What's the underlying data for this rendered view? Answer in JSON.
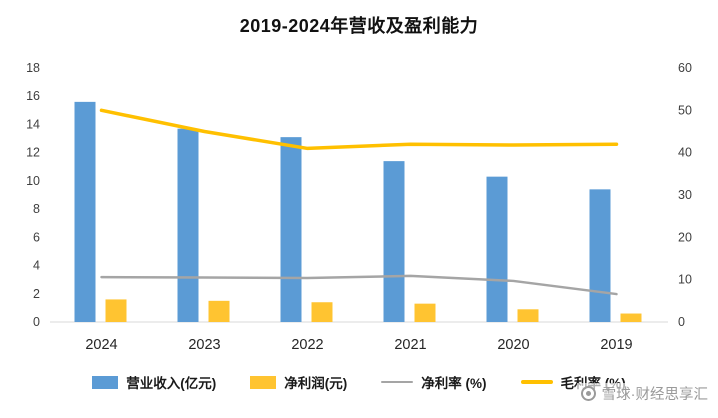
{
  "watermark": {
    "text": "雪球·财经思享汇"
  },
  "chart_data": {
    "type": "combo-bar-line",
    "title": "2019-2024年营收及盈利能力",
    "categories": [
      "2024",
      "2023",
      "2022",
      "2021",
      "2020",
      "2019"
    ],
    "left_axis": {
      "min": 0,
      "max": 18,
      "step": 2
    },
    "right_axis": {
      "min": 0,
      "max": 60,
      "step": 10
    },
    "grid": false,
    "legend_position": "bottom",
    "series": [
      {
        "name": "营业收入(亿元)",
        "type": "bar",
        "axis": "left",
        "color": "#5B9BD5",
        "values": [
          15.6,
          13.7,
          13.1,
          11.4,
          10.3,
          9.4
        ]
      },
      {
        "name": "净利润(元)",
        "type": "bar",
        "axis": "left",
        "color": "#FFC431",
        "values": [
          1.6,
          1.5,
          1.4,
          1.3,
          0.9,
          0.6
        ]
      },
      {
        "name": "净利率 (%)",
        "type": "line",
        "axis": "right",
        "color": "#A5A5A5",
        "width": 2.5,
        "values": [
          10.6,
          10.5,
          10.4,
          10.9,
          9.7,
          6.6
        ]
      },
      {
        "name": "毛利率 (%)",
        "type": "line",
        "axis": "right",
        "color": "#FFC000",
        "width": 3.5,
        "values": [
          50,
          45,
          41,
          42,
          41.8,
          42
        ]
      }
    ]
  }
}
